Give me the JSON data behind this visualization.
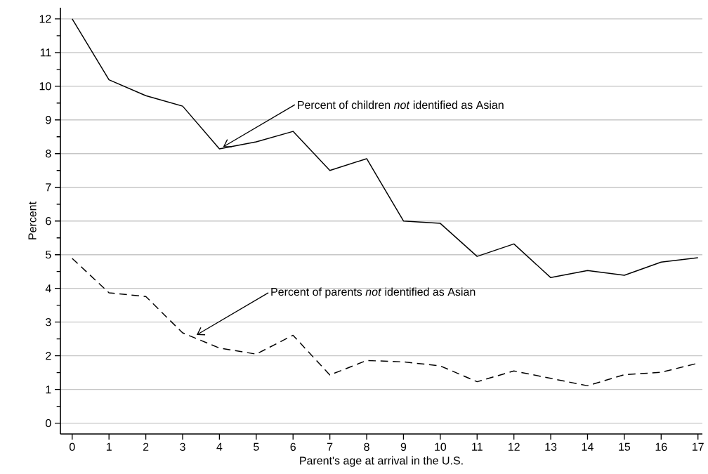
{
  "chart_data": {
    "type": "line",
    "xlabel": "Parent's age at arrival in the U.S.",
    "ylabel": "Percent",
    "x": [
      0,
      1,
      2,
      3,
      4,
      5,
      6,
      7,
      8,
      9,
      10,
      11,
      12,
      13,
      14,
      15,
      16,
      17
    ],
    "series": [
      {
        "color": "#000000",
        "line_style": "solid",
        "values": [
          12,
          10.19,
          9.72,
          9.41,
          8.14,
          8.35,
          8.66,
          7.5,
          7.85,
          6.0,
          5.93,
          4.95,
          5.32,
          4.32,
          4.53,
          4.39,
          4.78,
          4.91
        ]
      },
      {
        "color": "#000000",
        "line_style": "dashed",
        "values": [
          4.89,
          3.87,
          3.76,
          2.68,
          2.23,
          2.05,
          2.61,
          1.43,
          1.86,
          1.82,
          1.7,
          1.23,
          1.55,
          1.33,
          1.11,
          1.44,
          1.51,
          1.78
        ]
      }
    ],
    "annotations": [
      {
        "text": "Percent of children *not* identified as Asian",
        "x": 4.1,
        "y": 8.2
      },
      {
        "text": "Percent of parents *not* identified as Asian",
        "x": 3.38,
        "y": 2.62
      }
    ],
    "xlim": [
      -0.32,
      17.12
    ],
    "ylim": [
      -0.32,
      12.33
    ],
    "xticks": [
      0,
      1,
      2,
      3,
      4,
      5,
      6,
      7,
      8,
      9,
      10,
      11,
      12,
      13,
      14,
      15,
      16,
      17
    ],
    "yticks": [
      0,
      {
        "value": 0.5,
        "label": null
      },
      1,
      {
        "value": 1.5,
        "label": null
      },
      2,
      {
        "value": 2.5,
        "label": null
      },
      3,
      {
        "value": 3.5,
        "label": null
      },
      4,
      {
        "value": 4.5,
        "label": null
      },
      5,
      {
        "value": 5.5,
        "label": null
      },
      6,
      {
        "value": 6.5,
        "label": null
      },
      7,
      {
        "value": 7.5,
        "label": null
      },
      8,
      {
        "value": 8.5,
        "label": null
      },
      9,
      {
        "value": 9.5,
        "label": null
      },
      10,
      {
        "value": 10.5,
        "label": null
      },
      11,
      {
        "value": 11.5,
        "label": null
      },
      12
    ],
    "grid": "y"
  }
}
